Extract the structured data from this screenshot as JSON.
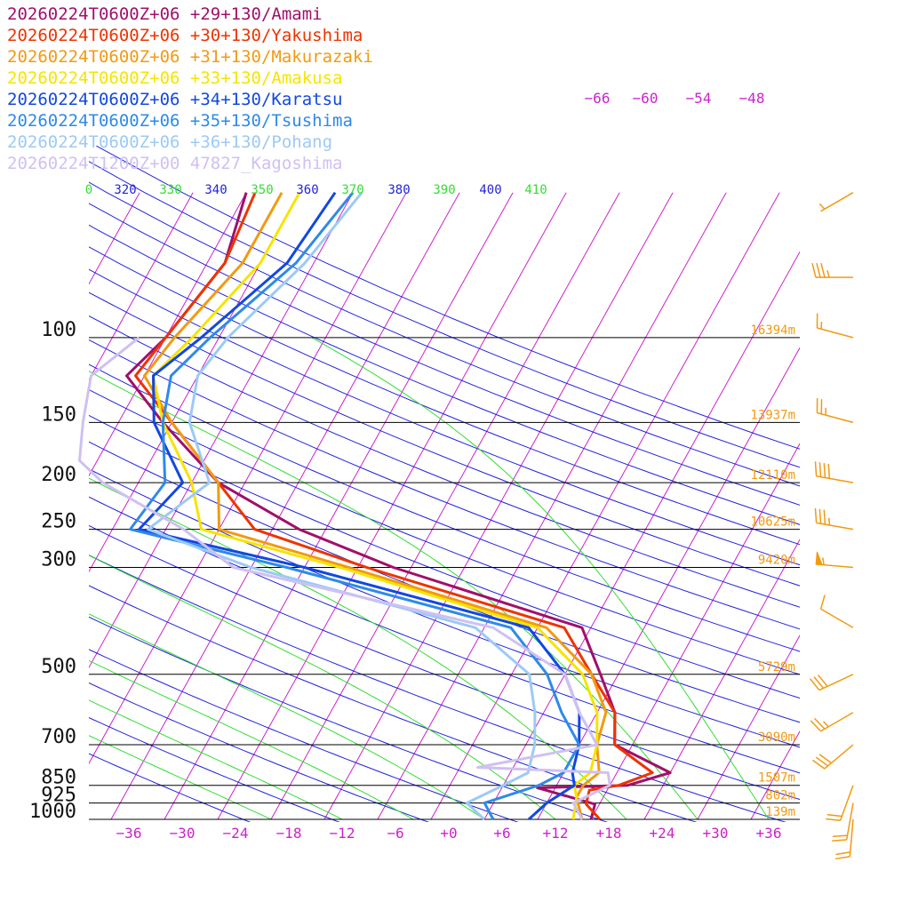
{
  "chart_data": {
    "type": "line",
    "subtype": "skew-T log-P sounding",
    "pressure_axis": {
      "levels": [
        100,
        150,
        200,
        250,
        300,
        500,
        700,
        850,
        925,
        1000
      ],
      "labels": [
        "100",
        "150",
        "200",
        "250",
        "300",
        "500",
        "700",
        "850",
        "925",
        "1000"
      ],
      "scale": "log",
      "range": [
        1000,
        100
      ]
    },
    "temperature_axis": {
      "ticks": [
        -36,
        -30,
        -24,
        -18,
        -12,
        -6,
        0,
        6,
        12,
        18,
        24,
        30,
        36
      ],
      "labels": [
        "−36",
        "−30",
        "−24",
        "−18",
        "−12",
        "−6",
        "+0",
        "+6",
        "+12",
        "+18",
        "+24",
        "+30",
        "+36"
      ],
      "upper_labels": [
        "−66",
        "−60",
        "−54",
        "−48"
      ],
      "units": "°C"
    },
    "theta_labels": [
      "0",
      "320",
      "330",
      "340",
      "350",
      "360",
      "370",
      "380",
      "390",
      "400",
      "410"
    ],
    "height_labels": [
      {
        "pressure": 100,
        "label": "16394m"
      },
      {
        "pressure": 150,
        "label": "13937m"
      },
      {
        "pressure": 200,
        "label": "12110m"
      },
      {
        "pressure": 250,
        "label": "10625m"
      },
      {
        "pressure": 300,
        "label": "9420m"
      },
      {
        "pressure": 500,
        "label": "5729m"
      },
      {
        "pressure": 700,
        "label": "3090m"
      },
      {
        "pressure": 850,
        "label": "1507m"
      },
      {
        "pressure": 925,
        "label": "802m"
      },
      {
        "pressure": 1000,
        "label": "139m"
      }
    ],
    "series": [
      {
        "name": "20260224T0600Z+06 +29+130/Amami",
        "color": "#a0106a",
        "points": [
          [
            1000,
            16
          ],
          [
            930,
            15.5
          ],
          [
            860,
            8
          ],
          [
            850,
            18
          ],
          [
            800,
            22
          ],
          [
            700,
            14
          ],
          [
            600,
            12
          ],
          [
            500,
            8
          ],
          [
            400,
            3
          ],
          [
            300,
            -22
          ],
          [
            250,
            -35
          ],
          [
            200,
            -47
          ],
          [
            150,
            -57
          ],
          [
            120,
            -64
          ],
          [
            100,
            -62
          ],
          [
            70,
            -60
          ],
          [
            50,
            -62
          ]
        ]
      },
      {
        "name": "20260224T0600Z+06 +30+130/Yakushima",
        "color": "#ee3300",
        "points": [
          [
            1000,
            17
          ],
          [
            930,
            14.5
          ],
          [
            870,
            14
          ],
          [
            850,
            17
          ],
          [
            800,
            20
          ],
          [
            700,
            14
          ],
          [
            600,
            12
          ],
          [
            500,
            7
          ],
          [
            400,
            1
          ],
          [
            300,
            -25
          ],
          [
            250,
            -40
          ],
          [
            200,
            -47
          ],
          [
            150,
            -56
          ],
          [
            120,
            -63
          ],
          [
            100,
            -62
          ],
          [
            70,
            -60
          ],
          [
            50,
            -61
          ]
        ]
      },
      {
        "name": "20260224T0600Z+06 +31+130/Makurazaki",
        "color": "#f29a10",
        "points": [
          [
            1000,
            15
          ],
          [
            900,
            13
          ],
          [
            850,
            13
          ],
          [
            800,
            14
          ],
          [
            700,
            12
          ],
          [
            600,
            11
          ],
          [
            500,
            7
          ],
          [
            400,
            -1
          ],
          [
            300,
            -27
          ],
          [
            250,
            -44
          ],
          [
            200,
            -47
          ],
          [
            150,
            -56
          ],
          [
            120,
            -62
          ],
          [
            100,
            -61
          ],
          [
            70,
            -58
          ],
          [
            50,
            -58
          ]
        ]
      },
      {
        "name": "20260224T0600Z+06 +33+130/Amakusa",
        "color": "#f6e400",
        "points": [
          [
            1000,
            14
          ],
          [
            900,
            13
          ],
          [
            850,
            12
          ],
          [
            800,
            13
          ],
          [
            700,
            12
          ],
          [
            600,
            10
          ],
          [
            500,
            6
          ],
          [
            400,
            -2
          ],
          [
            300,
            -28
          ],
          [
            250,
            -46
          ],
          [
            200,
            -50
          ],
          [
            150,
            -57
          ],
          [
            120,
            -61
          ],
          [
            100,
            -59
          ],
          [
            70,
            -56
          ],
          [
            50,
            -56
          ]
        ]
      },
      {
        "name": "20260224T0600Z+06 +34+130/Karatsu",
        "color": "#1248e0",
        "points": [
          [
            1000,
            9
          ],
          [
            925,
            10
          ],
          [
            850,
            12
          ],
          [
            800,
            11
          ],
          [
            700,
            10
          ],
          [
            600,
            8
          ],
          [
            500,
            4
          ],
          [
            400,
            -3
          ],
          [
            300,
            -32
          ],
          [
            250,
            -53
          ],
          [
            200,
            -51
          ],
          [
            150,
            -58
          ],
          [
            120,
            -61
          ],
          [
            100,
            -58
          ],
          [
            70,
            -53
          ],
          [
            50,
            -52
          ]
        ]
      },
      {
        "name": "20260224T0600Z+06 +35+130/Tsushima",
        "color": "#2e8ae8",
        "points": [
          [
            1000,
            5
          ],
          [
            925,
            3
          ],
          [
            850,
            8
          ],
          [
            800,
            10
          ],
          [
            700,
            10
          ],
          [
            600,
            6
          ],
          [
            500,
            2
          ],
          [
            400,
            -5
          ],
          [
            300,
            -34
          ],
          [
            250,
            -54
          ],
          [
            200,
            -53
          ],
          [
            150,
            -57
          ],
          [
            120,
            -59
          ],
          [
            100,
            -57
          ],
          [
            70,
            -52
          ],
          [
            50,
            -50
          ]
        ]
      },
      {
        "name": "20260224T0600Z+06 +36+130/Pohang",
        "color": "#9ccaf6",
        "points": [
          [
            1000,
            4
          ],
          [
            925,
            1
          ],
          [
            850,
            4
          ],
          [
            800,
            6
          ],
          [
            700,
            5
          ],
          [
            600,
            3
          ],
          [
            500,
            0
          ],
          [
            400,
            -9
          ],
          [
            300,
            -38
          ],
          [
            250,
            -52
          ],
          [
            200,
            -48
          ],
          [
            150,
            -54
          ],
          [
            120,
            -56
          ],
          [
            100,
            -55
          ],
          [
            70,
            -51
          ],
          [
            50,
            -49
          ]
        ]
      },
      {
        "name": "20260224T1200Z+00 47827_Kagoshima",
        "color": "#cfc0f2",
        "points": [
          [
            1000,
            15
          ],
          [
            925,
            13
          ],
          [
            850,
            16
          ],
          [
            800,
            15
          ],
          [
            780,
            0
          ],
          [
            700,
            12
          ],
          [
            600,
            8
          ],
          [
            500,
            4
          ],
          [
            400,
            -7
          ],
          [
            300,
            -40
          ],
          [
            250,
            -48
          ],
          [
            200,
            -60
          ],
          [
            180,
            -64
          ],
          [
            150,
            -66
          ],
          [
            120,
            -68
          ],
          [
            100,
            -65
          ]
        ]
      }
    ],
    "wind_barbs": [
      {
        "pressure": 50,
        "direction": 240,
        "speed": 5
      },
      {
        "pressure": 75,
        "direction": 270,
        "speed": 35
      },
      {
        "pressure": 100,
        "direction": 285,
        "speed": 15
      },
      {
        "pressure": 150,
        "direction": 285,
        "speed": 25
      },
      {
        "pressure": 200,
        "direction": 280,
        "speed": 40
      },
      {
        "pressure": 250,
        "direction": 280,
        "speed": 35
      },
      {
        "pressure": 300,
        "direction": 275,
        "speed": 55
      },
      {
        "pressure": 400,
        "direction": 300,
        "speed": 10
      },
      {
        "pressure": 500,
        "direction": 245,
        "speed": 30
      },
      {
        "pressure": 600,
        "direction": 240,
        "speed": 25
      },
      {
        "pressure": 700,
        "direction": 230,
        "speed": 30
      },
      {
        "pressure": 850,
        "direction": 200,
        "speed": 20
      },
      {
        "pressure": 925,
        "direction": 190,
        "speed": 20
      },
      {
        "pressure": 1000,
        "direction": 185,
        "speed": 20
      }
    ],
    "colors": {
      "isobar": "#000000",
      "isotherm": "#cc22cc",
      "dry_adiabat": "#2222dd",
      "moist_adiabat": "#33dd33",
      "height_label": "#f29a10",
      "barb": "#f29a10"
    }
  }
}
